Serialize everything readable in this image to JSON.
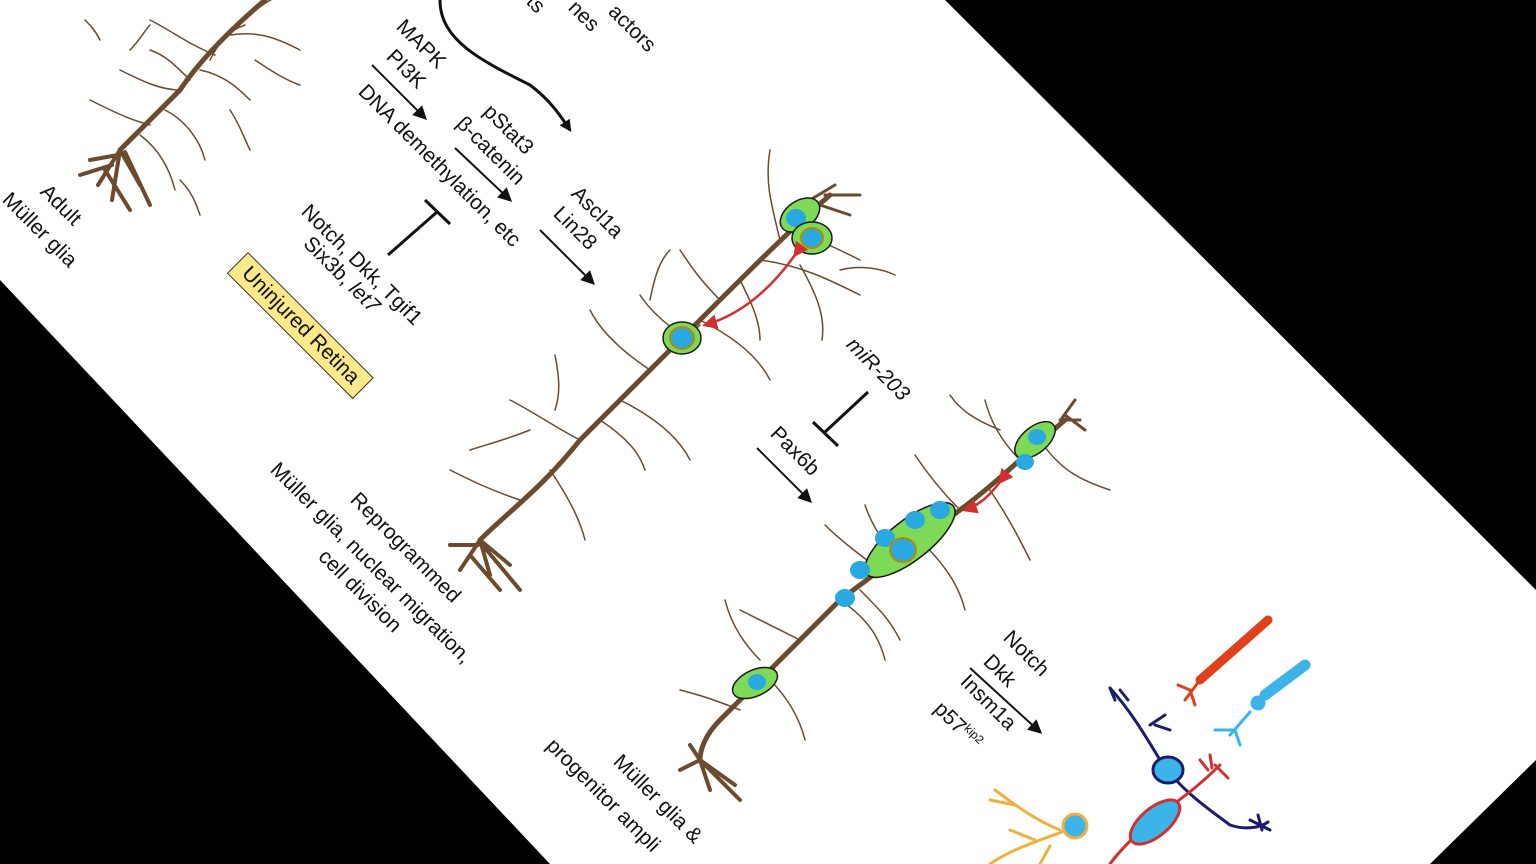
{
  "diagram": {
    "stages": [
      {
        "id": "adult",
        "label_lines": [
          "Adult",
          "Müller glia"
        ]
      },
      {
        "id": "reprogrammed",
        "label_lines": [
          "Reprogrammed",
          "Müller glia, nuclear migration,",
          "cell division"
        ]
      },
      {
        "id": "amplification",
        "label_lines": [
          "Müller glia &",
          "progenitor ampli"
        ]
      }
    ],
    "top_partial": {
      "line1": "actors",
      "line2": "nes",
      "line3": "ts"
    },
    "signals": {
      "mapk": "MAPK",
      "pi3k": "PI3K",
      "dna_demethylation": "DNA demethylation, etc",
      "pstat3": "pStat3",
      "beta_catenin": "β-catenin",
      "ascl1a": "Ascl1a",
      "lin28": "Lin28",
      "inhibitors_line1": "Notch, Dkk, Tgif1",
      "inhibitors_line2_prefix": "Six3b, ",
      "inhibitors_line2_italic": "let7",
      "mir203": "miR-203",
      "pax6b": "Pax6b",
      "notch": "Notch",
      "dkk": "Dkk",
      "insm1a": "Insm1a",
      "p57_base": "p57",
      "p57_sup": "kip2"
    },
    "badge": "Uninjured Retina"
  },
  "colors": {
    "glia_brown": "#6b4a2e",
    "nucleus_blue": "#2aa8e0",
    "cell_green": "#7ed957",
    "migration_red": "#d03030",
    "badge_yellow": "#fbe98a",
    "rod_red": "#e0401a",
    "cone_blue": "#3cb4ea",
    "bipolar_navy": "#1c1c6e",
    "ganglion_orange": "#f0b040"
  }
}
